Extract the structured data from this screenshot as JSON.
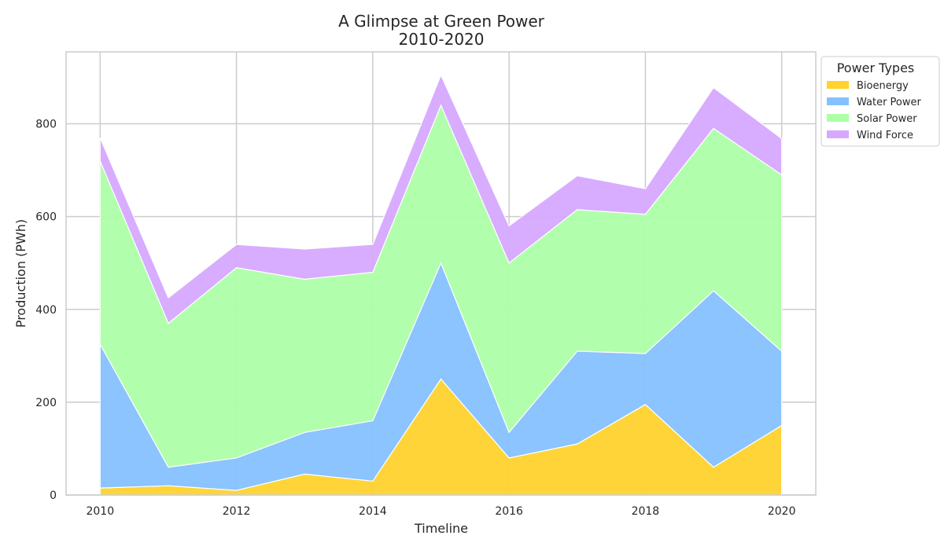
{
  "chart_data": {
    "type": "area",
    "stacked": true,
    "title": "A Glimpse at Green Power",
    "subtitle": "2010-2020",
    "xlabel": "Timeline",
    "ylabel": "Production (PWh)",
    "x": [
      2010,
      2011,
      2012,
      2013,
      2014,
      2015,
      2016,
      2017,
      2018,
      2019,
      2020
    ],
    "xticks": [
      "2010",
      "2012",
      "2014",
      "2016",
      "2018",
      "2020"
    ],
    "yticks": [
      "0",
      "200",
      "400",
      "600",
      "800"
    ],
    "xlim": [
      2009.5,
      2020.5
    ],
    "ylim": [
      0,
      955
    ],
    "grid": true,
    "legend_title": "Power Types",
    "legend_position": "outside-top-right",
    "series": [
      {
        "name": "Bioenergy",
        "color": "#ffd22e",
        "values": [
          15,
          20,
          10,
          45,
          30,
          250,
          80,
          110,
          195,
          60,
          150
        ]
      },
      {
        "name": "Water Power",
        "color": "#85c1ff",
        "values": [
          310,
          40,
          70,
          90,
          130,
          250,
          55,
          200,
          110,
          380,
          160
        ]
      },
      {
        "name": "Solar Power",
        "color": "#adffa8",
        "values": [
          395,
          310,
          410,
          330,
          320,
          340,
          365,
          305,
          300,
          350,
          380
        ]
      },
      {
        "name": "Wind Force",
        "color": "#d6a8ff",
        "values": [
          50,
          55,
          50,
          65,
          60,
          65,
          80,
          73,
          55,
          88,
          78
        ]
      }
    ]
  }
}
